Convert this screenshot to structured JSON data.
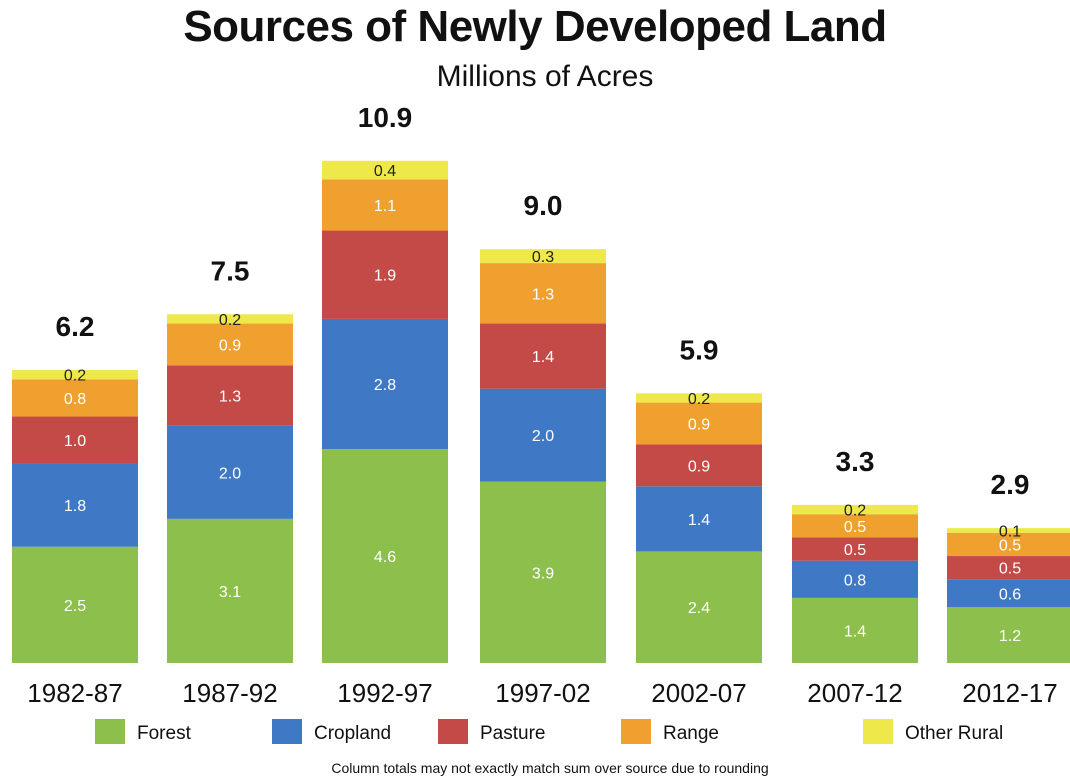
{
  "header": {
    "title": "Sources of Newly Developed Land",
    "subtitle": "Millions of Acres"
  },
  "footnote": "Column totals may not exactly match sum over source due to rounding",
  "colors": {
    "Forest": "#8dbf4c",
    "Cropland": "#3f78c4",
    "Pasture": "#c44a48",
    "Range": "#efa02f",
    "Other Rural": "#eee84a"
  },
  "chart_data": {
    "type": "bar",
    "stacked": true,
    "title": "Sources of Newly Developed Land",
    "subtitle": "Millions of Acres",
    "categories": [
      "1982-87",
      "1987-92",
      "1992-97",
      "1997-02",
      "2002-07",
      "2007-12",
      "2012-17"
    ],
    "series": [
      {
        "name": "Forest",
        "values": [
          2.5,
          3.1,
          4.6,
          3.9,
          2.4,
          1.4,
          1.2
        ]
      },
      {
        "name": "Cropland",
        "values": [
          1.8,
          2.0,
          2.8,
          2.0,
          1.4,
          0.8,
          0.6
        ]
      },
      {
        "name": "Pasture",
        "values": [
          1.0,
          1.3,
          1.9,
          1.4,
          0.9,
          0.5,
          0.5
        ]
      },
      {
        "name": "Range",
        "values": [
          0.8,
          0.9,
          1.1,
          1.3,
          0.9,
          0.5,
          0.5
        ]
      },
      {
        "name": "Other Rural",
        "values": [
          0.2,
          0.2,
          0.4,
          0.3,
          0.2,
          0.2,
          0.1
        ]
      }
    ],
    "totals": [
      "6.2",
      "7.5",
      "10.9",
      "9.0",
      "5.9",
      "3.3",
      "2.9"
    ],
    "legend": [
      "Forest",
      "Cropland",
      "Pasture",
      "Range",
      "Other Rural"
    ],
    "legend_position": "bottom",
    "grid": false
  }
}
